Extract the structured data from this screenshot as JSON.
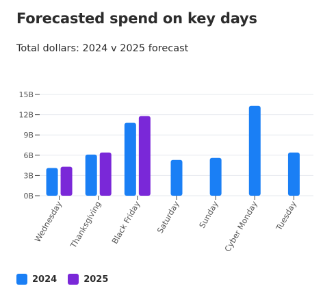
{
  "title": "Forecasted spend on key days",
  "subtitle": "Total dollars: 2024 v 2025 forecast",
  "colors": {
    "series_2024": "#1a7ff5",
    "series_2025": "#7a28d8",
    "grid": "#e6e8ee",
    "axis": "#444444",
    "tick_text": "#555555"
  },
  "legend": [
    {
      "label": "2024",
      "color": "#1a7ff5"
    },
    {
      "label": "2025",
      "color": "#7a28d8"
    }
  ],
  "chart_data": {
    "type": "bar",
    "categories": [
      "Wednesday",
      "Thanksgiving",
      "Black Friday",
      "Saturday",
      "Sunday",
      "Cyber Monday",
      "Tuesday"
    ],
    "series": [
      {
        "name": "2024",
        "values": [
          4.1,
          6.1,
          10.8,
          5.3,
          5.6,
          13.3,
          6.4
        ]
      },
      {
        "name": "2025",
        "values": [
          4.3,
          6.4,
          11.8,
          null,
          null,
          null,
          null
        ]
      }
    ],
    "ylim": [
      0,
      15
    ],
    "yticks": [
      0,
      3,
      6,
      9,
      12,
      15
    ],
    "ytick_labels": [
      "0B",
      "3B",
      "6B",
      "9B",
      "12B",
      "15B"
    ],
    "grid": true,
    "legend_position": "bottom-left"
  }
}
